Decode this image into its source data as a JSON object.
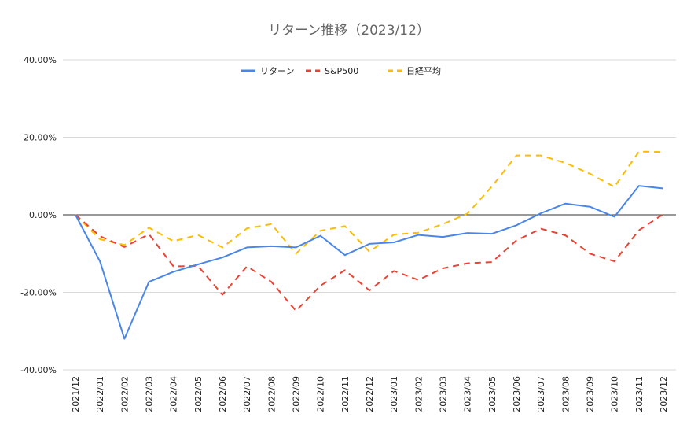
{
  "chart_data": {
    "type": "line",
    "title": "リターン推移（2023/12）",
    "xlabel": "",
    "ylabel": "",
    "ylim": [
      -40,
      40
    ],
    "yticks": [
      "40.00%",
      "20.00%",
      "0.00%",
      "-20.00%",
      "-40.00%"
    ],
    "ytick_values": [
      40,
      20,
      0,
      -20,
      -40
    ],
    "legend_position": "top-center",
    "grid": true,
    "categories": [
      "2021/12",
      "2022/01",
      "2022/02",
      "2022/03",
      "2022/04",
      "2022/05",
      "2022/06",
      "2022/07",
      "2022/08",
      "2022/09",
      "2022/10",
      "2022/11",
      "2022/12",
      "2023/01",
      "2023/02",
      "2023/03",
      "2023/04",
      "2023/05",
      "2023/06",
      "2023/07",
      "2023/08",
      "2023/09",
      "2023/10",
      "2023/11",
      "2023/12"
    ],
    "series": [
      {
        "name": "リターン",
        "color": "#4a86e8",
        "dash": "solid",
        "values": [
          0,
          -12,
          -32,
          -17.3,
          -14.7,
          -12.8,
          -11,
          -8.4,
          -8.1,
          -8.4,
          -5.4,
          -10.4,
          -7.5,
          -7.1,
          -5.2,
          -5.7,
          -4.7,
          -4.9,
          -2.7,
          0.4,
          2.9,
          2.1,
          -0.5,
          7.5,
          6.8
        ]
      },
      {
        "name": "S&P500",
        "color": "#ea4335",
        "dash": "dashed",
        "values": [
          0,
          -5.5,
          -8.3,
          -5,
          -13.3,
          -13.2,
          -20.6,
          -13.3,
          -17.3,
          -24.8,
          -18.3,
          -14.3,
          -19.5,
          -14.5,
          -16.8,
          -13.8,
          -12.5,
          -12.2,
          -6.6,
          -3.6,
          -5.3,
          -10,
          -12,
          -4,
          0.2
        ]
      },
      {
        "name": "日経平均",
        "color": "#fbbc04",
        "dash": "dashed",
        "values": [
          0,
          -6.3,
          -7.8,
          -3.3,
          -6.8,
          -5.2,
          -8.4,
          -3.5,
          -2.4,
          -10,
          -4.1,
          -2.9,
          -9.5,
          -5.1,
          -4.6,
          -2.4,
          0.3,
          7.3,
          15.3,
          15.3,
          13.4,
          10.6,
          7.2,
          16.3,
          16.2
        ]
      }
    ]
  }
}
